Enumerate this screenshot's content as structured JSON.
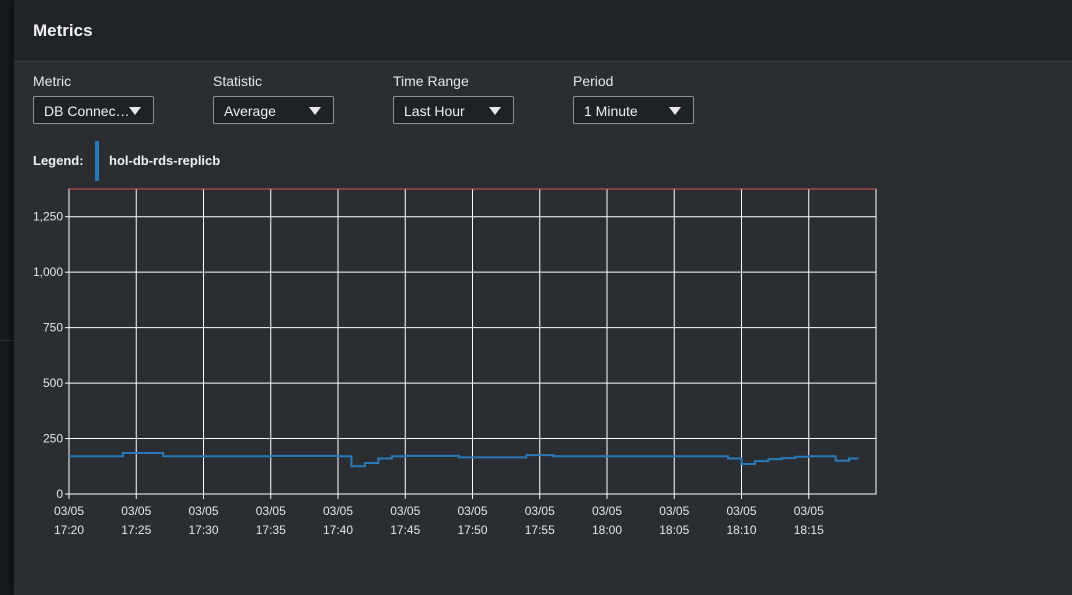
{
  "modal": {
    "title": "Metrics"
  },
  "controls": [
    {
      "label": "Metric",
      "value": "DB Connections"
    },
    {
      "label": "Statistic",
      "value": "Average"
    },
    {
      "label": "Time Range",
      "value": "Last Hour"
    },
    {
      "label": "Period",
      "value": "1 Minute"
    }
  ],
  "legend": {
    "label": "Legend:",
    "series_name": "hol-db-rds-replicb",
    "color": "#2a7ab8"
  },
  "colors": {
    "line": "#2a7ab8",
    "threshold": "#e05252",
    "grid": "#ffffff"
  },
  "chart_data": {
    "type": "line",
    "title": "",
    "xlabel": "",
    "ylabel": "",
    "ylim": [
      0,
      1375
    ],
    "xlim": [
      "03/05 17:20",
      "03/05 18:20"
    ],
    "yticks": [
      0,
      250,
      500,
      750,
      1000,
      1250
    ],
    "ytick_labels": [
      "0",
      "250",
      "500",
      "750",
      "1,000",
      "1,250"
    ],
    "xticks": [
      {
        "date": "03/05",
        "time": "17:20"
      },
      {
        "date": "03/05",
        "time": "17:25"
      },
      {
        "date": "03/05",
        "time": "17:30"
      },
      {
        "date": "03/05",
        "time": "17:35"
      },
      {
        "date": "03/05",
        "time": "17:40"
      },
      {
        "date": "03/05",
        "time": "17:45"
      },
      {
        "date": "03/05",
        "time": "17:50"
      },
      {
        "date": "03/05",
        "time": "17:55"
      },
      {
        "date": "03/05",
        "time": "18:00"
      },
      {
        "date": "03/05",
        "time": "18:05"
      },
      {
        "date": "03/05",
        "time": "18:10"
      },
      {
        "date": "03/05",
        "time": "18:15"
      }
    ],
    "grid": true,
    "step": true,
    "series": [
      {
        "name": "hol-db-rds-replicb",
        "x": [
          "17:20",
          "17:24",
          "17:27",
          "17:35",
          "17:40",
          "17:41",
          "17:42",
          "17:43",
          "17:44",
          "17:45",
          "17:47",
          "17:49",
          "17:53",
          "17:54",
          "17:56",
          "17:59",
          "18:03",
          "18:04",
          "18:06",
          "18:09",
          "18:10",
          "18:11",
          "18:12",
          "18:13",
          "18:14",
          "18:15",
          "18:16",
          "18:17",
          "18:18"
        ],
        "values": [
          170,
          185,
          170,
          172,
          170,
          125,
          140,
          160,
          170,
          172,
          172,
          165,
          165,
          175,
          170,
          170,
          170,
          170,
          170,
          160,
          135,
          148,
          157,
          162,
          168,
          170,
          170,
          150,
          160
        ]
      }
    ],
    "threshold_line": 1375
  }
}
